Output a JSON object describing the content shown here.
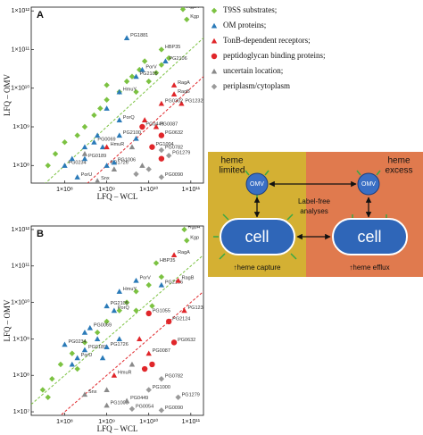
{
  "chart_data": [
    {
      "type": "scatter",
      "panel_label": "A",
      "xlabel": "LFQ – WCL",
      "ylabel": "LFQ – OMV",
      "log_x": true,
      "log_y": true,
      "xlim": [
        16000000,
        200000000000
      ],
      "ylim": [
        35000000,
        1250000000000
      ],
      "xticks": [
        {
          "value": 100000000,
          "label": "1×10⁸"
        },
        {
          "value": 1000000000,
          "label": "1×10⁹"
        },
        {
          "value": 10000000000,
          "label": "1×10¹⁰"
        },
        {
          "value": 100000000000,
          "label": "1×10¹¹"
        }
      ],
      "yticks": [
        {
          "value": 100000000,
          "label": "1×10⁸"
        },
        {
          "value": 1000000000,
          "label": "1×10⁹"
        },
        {
          "value": 10000000000,
          "label": "1×10¹⁰"
        },
        {
          "value": 100000000000,
          "label": "1×10¹¹"
        },
        {
          "value": 1000000000000,
          "label": "1×10¹²"
        }
      ],
      "diagonals": [
        {
          "ratio": 1,
          "color": "#7cc242"
        },
        {
          "ratio": 0.1,
          "color": "#e0262a"
        }
      ],
      "series": [
        {
          "name": "T9SS substrates;",
          "color": "#7cc242",
          "marker": "diamond",
          "x": [
            65000000000,
            80000000000,
            20000000000,
            20000000000,
            15000000000,
            6000000000,
            4000000000,
            3000000000,
            2000000000,
            1000000000,
            700000000,
            500000000,
            300000000,
            200000000,
            100000000,
            60000000,
            40000000,
            1000000000,
            5000000000,
            8000000000,
            30000000000,
            10000000000
          ],
          "values": [
            1100000000000,
            600000000000,
            100000000000,
            40000000000,
            25000000000,
            30000000000,
            20000000000,
            15000000000,
            8000000000,
            5000000000,
            3000000000,
            2000000000,
            1000000000,
            600000000,
            400000000,
            200000000,
            100000000,
            12000000000,
            8000000000,
            50000000000,
            60000000000,
            15000000000
          ],
          "labels": [
            "RgpA",
            "Kgp",
            "HBP35",
            null,
            null,
            null,
            null,
            null,
            null,
            null,
            null,
            null,
            null,
            null,
            null,
            null,
            null,
            null,
            null,
            null,
            null,
            null
          ]
        },
        {
          "name": "OM proteins;",
          "color": "#2a7ab8",
          "marker": "triangle",
          "x": [
            3000000000,
            7000000000,
            5000000000,
            2000000000,
            1000000000,
            2000000000,
            500000000,
            300000000,
            100000000,
            200000000,
            300000000,
            1000000000,
            1500000000,
            800000000,
            2000000000,
            25000000000,
            5000000000,
            600000000,
            150000000
          ],
          "values": [
            200000000000,
            30000000000,
            20000000000,
            8000000000,
            3000000000,
            1500000000,
            400000000,
            300000000,
            100000000,
            50000000,
            150000000,
            100000000,
            120000000,
            300000000,
            600000000,
            50000000000,
            500000000,
            600000000,
            150000000
          ],
          "labels": [
            "PG1881",
            "PorV",
            "PG2105",
            "HmuY",
            null,
            "PorQ",
            "PG0069",
            null,
            "PG0234",
            "PorU",
            "PG0189",
            "PG1726",
            "PG1006",
            null,
            "PG2100",
            "PG2106",
            null,
            null,
            null
          ]
        },
        {
          "name": "TonB-dependent receptors;",
          "color": "#e0262a",
          "marker": "triangle",
          "x": [
            40000000000,
            40000000000,
            60000000000,
            20000000000,
            1000000000,
            8000000000,
            15000000000
          ],
          "values": [
            12000000000,
            7000000000,
            4000000000,
            4000000000,
            300000000,
            1500000000,
            1000000000
          ],
          "labels": [
            "RagA",
            "RagB",
            "PG1232",
            "PG0302",
            "HmuR",
            null,
            "PG0087"
          ]
        },
        {
          "name": "peptidoglycan binding proteins;",
          "color": "#e0262a",
          "marker": "circle",
          "x": [
            20000000000,
            12000000000,
            20000000000,
            7000000000
          ],
          "values": [
            600000000,
            300000000,
            150000000,
            1000000000
          ],
          "labels": [
            "PG0632",
            "PG1004",
            null,
            "PG0449"
          ]
        },
        {
          "name": "uncertain location;",
          "color": "#8a8a8a",
          "marker": "triangle",
          "x": [
            600000000,
            300000000,
            1500000000,
            4000000000,
            7000000000
          ],
          "values": [
            40000000,
            200000000,
            80000000,
            300000000,
            100000000
          ],
          "labels": [
            "Snx",
            null,
            null,
            null,
            null
          ]
        },
        {
          "name": "periplasm/cytoplasm",
          "color": "#9a9a9a",
          "marker": "diamond",
          "x": [
            20000000000,
            30000000000,
            20000000000,
            10000000000,
            5000000000
          ],
          "values": [
            250000000,
            180000000,
            50000000,
            80000000,
            60000000
          ],
          "labels": [
            "PG0782",
            "PG1279",
            "PG0090",
            null,
            null
          ]
        }
      ]
    },
    {
      "type": "scatter",
      "panel_label": "B",
      "xlabel": "LFQ – WCL",
      "ylabel": "LFQ – OMV",
      "log_x": true,
      "log_y": true,
      "xlim": [
        16000000,
        200000000000
      ],
      "ylim": [
        8000000,
        1250000000000
      ],
      "xticks": [
        {
          "value": 100000000,
          "label": "1×10⁸"
        },
        {
          "value": 1000000000,
          "label": "1×10⁹"
        },
        {
          "value": 10000000000,
          "label": "1×10¹⁰"
        },
        {
          "value": 100000000000,
          "label": "1×10¹¹"
        }
      ],
      "yticks": [
        {
          "value": 10000000,
          "label": "1×10⁷"
        },
        {
          "value": 100000000,
          "label": "1×10⁸"
        },
        {
          "value": 1000000000,
          "label": "1×10⁹"
        },
        {
          "value": 10000000000,
          "label": "1×10¹⁰"
        },
        {
          "value": 100000000000,
          "label": "1×10¹¹"
        },
        {
          "value": 1000000000000,
          "label": "1×10¹²"
        }
      ],
      "diagonals": [
        {
          "ratio": 1,
          "color": "#7cc242"
        },
        {
          "ratio": 0.1,
          "color": "#e0262a"
        }
      ],
      "series": [
        {
          "color": "#7cc242",
          "marker": "diamond",
          "x": [
            70000000000,
            80000000000,
            15000000000,
            20000000000,
            10000000000,
            5000000000,
            3000000000,
            2000000000,
            1000000000,
            600000000,
            300000000,
            150000000,
            80000000,
            50000000,
            30000000,
            5000000000,
            12000000000,
            200000000,
            40000000
          ],
          "values": [
            1000000000000,
            500000000000,
            120000000000,
            50000000000,
            30000000000,
            20000000000,
            10000000000,
            6000000000,
            3000000000,
            1500000000,
            800000000,
            400000000,
            200000000,
            80000000,
            40000000,
            6000000000,
            8000000000,
            150000000,
            25000000
          ],
          "labels": [
            "RgpA",
            "Kgp",
            "HBP35",
            null,
            null,
            null,
            null,
            null,
            null,
            null,
            null,
            null,
            null,
            null,
            null,
            null,
            null,
            null,
            null
          ]
        },
        {
          "color": "#2a7ab8",
          "marker": "triangle",
          "x": [
            5000000000,
            2000000000,
            1500000000,
            1000000000,
            20000000000,
            400000000,
            100000000,
            300000000,
            1000000000,
            200000000,
            600000000,
            2000000000,
            300000000,
            150000000,
            800000000
          ],
          "values": [
            40000000000,
            20000000000,
            6000000000,
            8000000000,
            30000000000,
            2000000000,
            700000000,
            500000000,
            600000000,
            300000000,
            1000000000,
            1000000000,
            1500000000,
            200000000,
            300000000
          ],
          "labels": [
            "PorV",
            "HmuY",
            "PorQ",
            "PG2105",
            "PG2106",
            "PG0069",
            "PG0234",
            "PG0189",
            "PG1726",
            "PorU",
            null,
            null,
            null,
            null,
            null
          ]
        },
        {
          "color": "#e0262a",
          "marker": "triangle",
          "x": [
            40000000000,
            50000000000,
            70000000000,
            10000000000,
            1500000000,
            6000000000
          ],
          "values": [
            200000000000,
            40000000000,
            6000000000,
            400000000,
            100000000,
            1000000000
          ],
          "labels": [
            "RagA",
            "RagB",
            "PG1232",
            "PG0087",
            "HmuR",
            null
          ]
        },
        {
          "color": "#e0262a",
          "marker": "circle",
          "x": [
            40000000000,
            30000000000,
            12000000000,
            8000000000,
            10000000000
          ],
          "values": [
            800000000,
            3000000000,
            200000000,
            150000000,
            5000000000
          ],
          "labels": [
            "PG0632",
            "PG2124",
            null,
            null,
            "PG1055"
          ]
        },
        {
          "color": "#8a8a8a",
          "marker": "triangle",
          "x": [
            300000000,
            1000000000,
            1000000000,
            4000000000,
            3000000000
          ],
          "values": [
            30000000,
            40000000,
            15000000,
            200000000,
            20000000
          ],
          "labels": [
            "Snx",
            null,
            "PG1006",
            null,
            "PG0449"
          ]
        },
        {
          "color": "#9a9a9a",
          "marker": "diamond",
          "x": [
            20000000000,
            50000000000,
            20000000000,
            4000000000,
            10000000000
          ],
          "values": [
            80000000,
            25000000,
            11000000,
            12000000,
            40000000
          ],
          "labels": [
            "PG0782",
            "PG1279",
            "PG0090",
            "PG0054",
            "PG1000"
          ]
        }
      ]
    }
  ],
  "diagram": {
    "left": {
      "title": [
        "heme",
        "limited"
      ],
      "omv": "OMV",
      "cell": "cell",
      "caption": "↑heme capture"
    },
    "right": {
      "title": [
        "heme",
        "excess"
      ],
      "omv": "OMV",
      "cell": "cell",
      "caption": "↑heme efflux"
    },
    "center": [
      "Label-free",
      "analyses"
    ]
  }
}
